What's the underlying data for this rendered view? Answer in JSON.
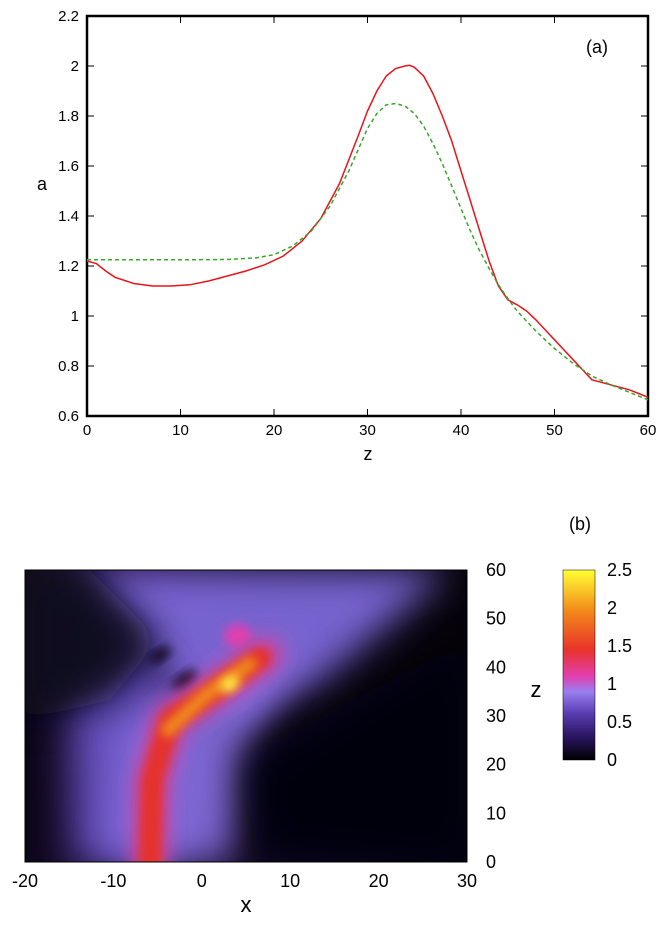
{
  "chart_data": [
    {
      "type": "line",
      "panel_label": "(a)",
      "xlabel": "z",
      "ylabel": "a",
      "xlim": [
        0,
        60
      ],
      "ylim": [
        0.6,
        2.2
      ],
      "x_ticks": [
        0,
        10,
        20,
        30,
        40,
        50,
        60
      ],
      "y_ticks": [
        0.6,
        0.8,
        1,
        1.2,
        1.4,
        1.6,
        1.8,
        2,
        2.2
      ],
      "grid": false,
      "series": [
        {
          "style": "solid",
          "color": "#e8141c",
          "x": [
            0,
            1,
            2,
            3,
            5,
            7,
            9,
            11,
            13,
            15,
            17,
            19,
            21,
            23,
            25,
            27,
            29,
            30,
            31,
            32,
            33,
            34,
            34.5,
            35,
            36,
            37,
            38,
            39,
            40,
            41,
            42,
            43,
            44,
            45,
            46,
            47,
            48,
            49,
            50,
            51,
            52,
            53,
            54,
            55,
            56,
            57,
            58,
            59,
            60
          ],
          "y": [
            1.22,
            1.21,
            1.18,
            1.155,
            1.13,
            1.12,
            1.12,
            1.125,
            1.14,
            1.16,
            1.18,
            1.205,
            1.24,
            1.3,
            1.39,
            1.53,
            1.72,
            1.82,
            1.9,
            1.96,
            1.99,
            2.0,
            2.003,
            1.995,
            1.96,
            1.89,
            1.8,
            1.7,
            1.58,
            1.46,
            1.34,
            1.22,
            1.12,
            1.065,
            1.045,
            1.02,
            0.985,
            0.945,
            0.905,
            0.865,
            0.825,
            0.785,
            0.745,
            0.735,
            0.725,
            0.715,
            0.705,
            0.69,
            0.675
          ]
        },
        {
          "style": "dashed",
          "color": "#3aa62a",
          "x": [
            0,
            5,
            10,
            15,
            18,
            20,
            22,
            24,
            26,
            28,
            30,
            31,
            32,
            33,
            34,
            35,
            36,
            37,
            38,
            39,
            40,
            41,
            42,
            43,
            44,
            45,
            46,
            47,
            48,
            49,
            50,
            52,
            54,
            56,
            58,
            60
          ],
          "y": [
            1.225,
            1.225,
            1.225,
            1.226,
            1.232,
            1.245,
            1.28,
            1.34,
            1.44,
            1.58,
            1.75,
            1.81,
            1.845,
            1.85,
            1.84,
            1.81,
            1.76,
            1.69,
            1.61,
            1.52,
            1.43,
            1.34,
            1.26,
            1.19,
            1.125,
            1.07,
            1.02,
            0.98,
            0.94,
            0.905,
            0.87,
            0.81,
            0.76,
            0.725,
            0.695,
            0.665
          ]
        }
      ]
    },
    {
      "type": "heatmap",
      "panel_label": "(b)",
      "xlabel": "x",
      "ylabel": "z",
      "xlim": [
        -20,
        30
      ],
      "ylim": [
        0,
        60
      ],
      "x_ticks": [
        -20,
        -10,
        0,
        10,
        20,
        30
      ],
      "y_ticks": [
        0,
        10,
        20,
        30,
        40,
        50,
        60
      ],
      "colorbar": {
        "ticks": [
          2.5,
          2,
          1.5,
          1,
          0.5,
          0
        ],
        "range": [
          0,
          2.5
        ],
        "colors": [
          "#000000",
          "#2a1460",
          "#5b3fb3",
          "#9a7ff0",
          "#e23fb0",
          "#e8332a",
          "#f2871a",
          "#ffff33"
        ]
      },
      "features": [
        {
          "kind": "ridge",
          "points": [
            [
              -5,
              0
            ],
            [
              -5,
              12
            ],
            [
              -4,
              22
            ],
            [
              -1,
              28
            ],
            [
              3,
              33
            ],
            [
              7,
              42
            ]
          ],
          "peak": 2.5,
          "note_at_peak": [
            3,
            36
          ]
        },
        {
          "kind": "blob",
          "center": [
            3,
            50
          ],
          "value": 1.1
        },
        {
          "kind": "background_left_band",
          "value": 0.6
        },
        {
          "kind": "background_top_fan",
          "value": 0.6
        }
      ]
    }
  ]
}
